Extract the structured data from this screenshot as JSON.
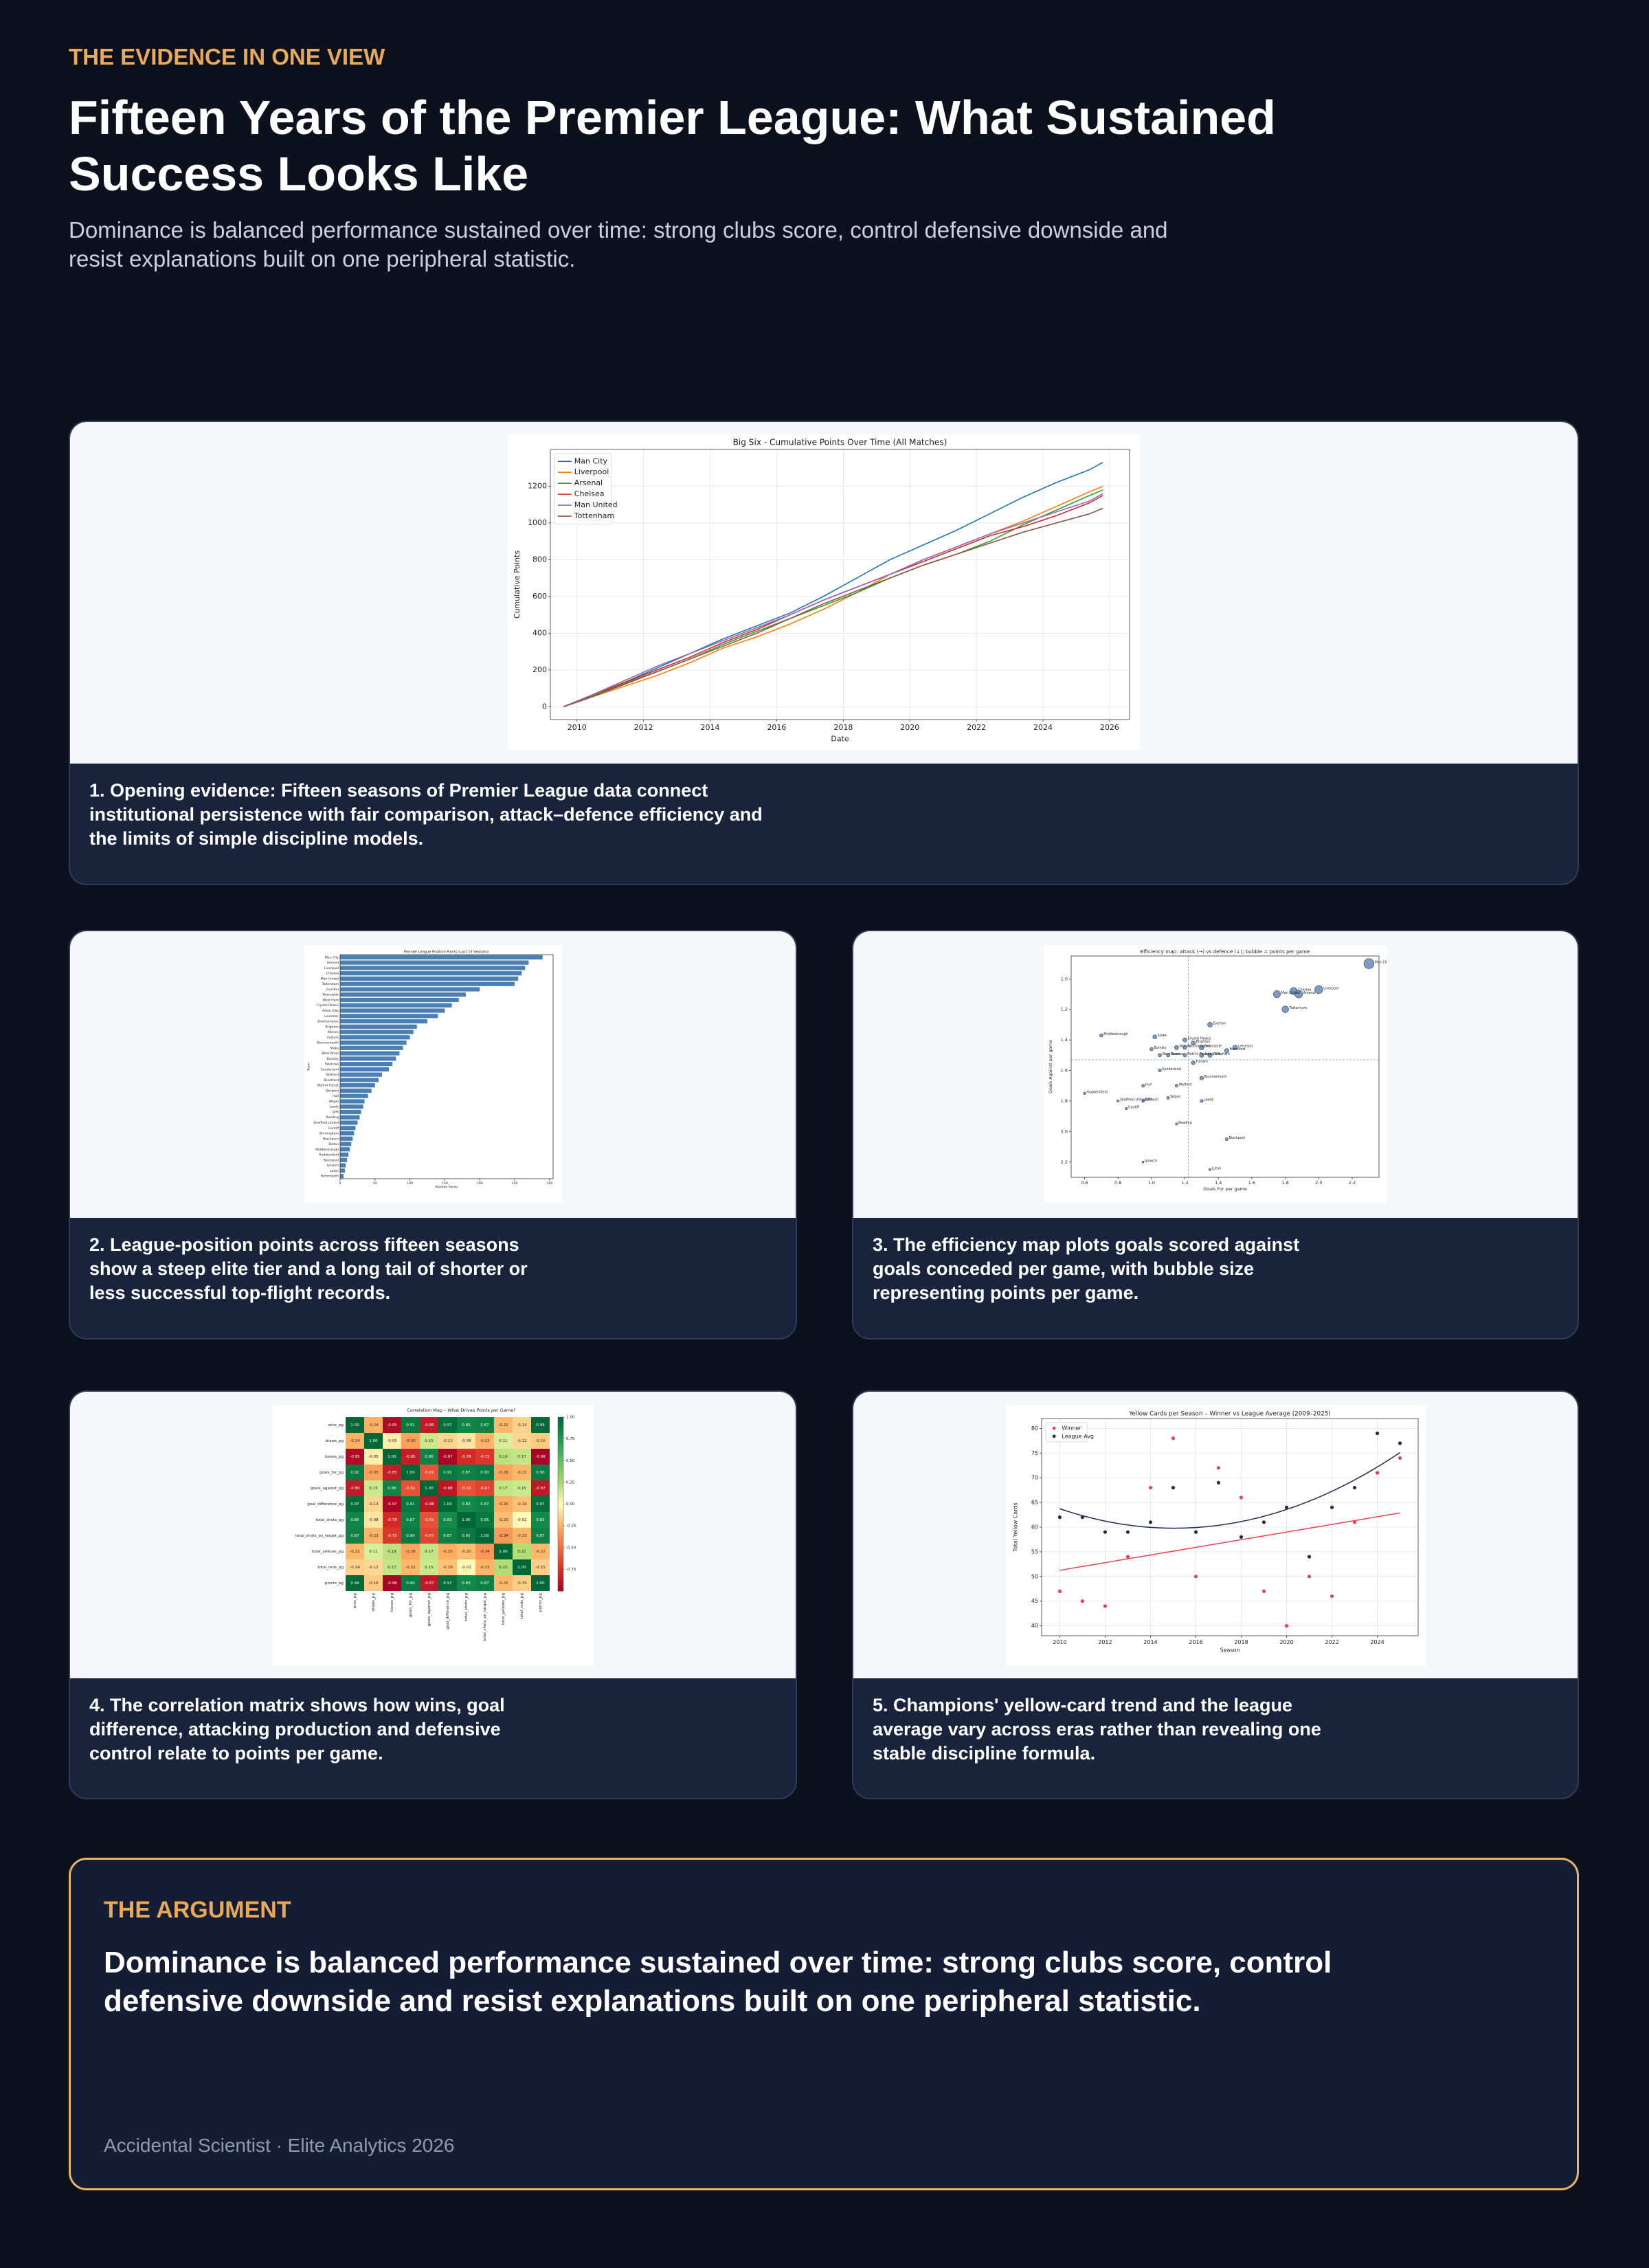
{
  "header": {
    "eyebrow": "THE EVIDENCE IN ONE VIEW",
    "title": "Fifteen Years of the Premier League: What Sustained Success Looks Like",
    "subtitle": "Dominance is balanced performance sustained over time: strong clubs score, control defensive downside and resist explanations built on one peripheral statistic."
  },
  "captions": [
    "1. Opening evidence: Fifteen seasons of Premier League data connect institutional persistence with fair comparison, attack–defence efficiency and the limits of simple discipline models.",
    "2. League-position points across fifteen seasons show a steep elite tier and a long tail of shorter or less successful top-flight records.",
    "3. The efficiency map plots goals scored against goals conceded per game, with bubble size representing points per game.",
    "4. The correlation matrix shows how wins, goal difference, attacking production and defensive control relate to points per game.",
    "5. Champions' yellow-card trend and the league average vary across eras rather than revealing one stable discipline formula."
  ],
  "argument": {
    "label": "THE ARGUMENT",
    "text": "Dominance is balanced performance sustained over time: strong clubs score, control defensive downside and resist explanations built on one peripheral statistic.",
    "footer": "Accidental Scientist · Elite Analytics 2026"
  },
  "chart_data": [
    {
      "type": "line",
      "title": "Big Six - Cumulative Points Over Time (All Matches)",
      "xlabel": "Date",
      "ylabel": "Cumulative Points",
      "x": [
        2009.6,
        2010.4,
        2011.4,
        2012.4,
        2013.4,
        2014.4,
        2015.4,
        2016.4,
        2017.4,
        2018.4,
        2019.4,
        2020.4,
        2021.4,
        2022.4,
        2023.4,
        2024.4,
        2025.4,
        2025.8
      ],
      "series": [
        {
          "name": "Man City",
          "color": "#1f77b4",
          "values": [
            0,
            60,
            130,
            210,
            290,
            370,
            440,
            510,
            600,
            700,
            800,
            880,
            960,
            1050,
            1140,
            1220,
            1290,
            1330
          ]
        },
        {
          "name": "Liverpool",
          "color": "#ff7f0e",
          "values": [
            0,
            50,
            110,
            170,
            240,
            320,
            380,
            450,
            530,
            620,
            720,
            800,
            870,
            940,
            1010,
            1090,
            1170,
            1200
          ]
        },
        {
          "name": "Arsenal",
          "color": "#2ca02c",
          "values": [
            0,
            55,
            125,
            190,
            260,
            340,
            410,
            480,
            550,
            620,
            700,
            770,
            830,
            900,
            990,
            1070,
            1150,
            1180
          ]
        },
        {
          "name": "Chelsea",
          "color": "#d62728",
          "values": [
            0,
            60,
            130,
            200,
            270,
            350,
            420,
            500,
            580,
            650,
            720,
            790,
            860,
            930,
            980,
            1040,
            1110,
            1150
          ]
        },
        {
          "name": "Man United",
          "color": "#9467bd",
          "values": [
            0,
            60,
            140,
            220,
            290,
            360,
            430,
            500,
            580,
            650,
            720,
            800,
            870,
            940,
            1000,
            1060,
            1120,
            1160
          ]
        },
        {
          "name": "Tottenham",
          "color": "#8c564b",
          "values": [
            0,
            50,
            120,
            190,
            260,
            330,
            400,
            480,
            560,
            630,
            700,
            770,
            830,
            890,
            950,
            1000,
            1050,
            1080
          ]
        }
      ],
      "xlim": [
        2009.2,
        2026.6
      ],
      "xticks": [
        2010,
        2012,
        2014,
        2016,
        2018,
        2020,
        2022,
        2024,
        2026
      ],
      "ylim": [
        -70,
        1400
      ],
      "yticks": [
        0,
        200,
        400,
        600,
        800,
        1000,
        1200
      ],
      "grid": true,
      "legend": "upper-left"
    },
    {
      "type": "hbar",
      "title": "Premier League Position Points (Last 15 Seasons)",
      "xlabel": "Position Points",
      "ylabel": "Team",
      "color": "#4a7fb5",
      "categories": [
        "Man City",
        "Arsenal",
        "Liverpool",
        "Chelsea",
        "Man United",
        "Tottenham",
        "Everton",
        "Newcastle",
        "West Ham",
        "Crystal Palace",
        "Aston Villa",
        "Leicester",
        "Southampton",
        "Brighton",
        "Wolves",
        "Fulham",
        "Bournemouth",
        "Stoke",
        "West Brom",
        "Burnley",
        "Swansea",
        "Sunderland",
        "Watford",
        "Brentford",
        "Nott'm Forest",
        "Norwich",
        "Hull",
        "Wigan",
        "Leeds",
        "QPR",
        "Reading",
        "Sheffield United",
        "Cardiff",
        "Birmingham",
        "Blackburn",
        "Bolton",
        "Middlesbrough",
        "Huddersfield",
        "Blackpool",
        "Ipswich",
        "Luton",
        "Portsmouth"
      ],
      "values": [
        290,
        270,
        265,
        260,
        255,
        250,
        200,
        180,
        170,
        160,
        150,
        140,
        125,
        110,
        105,
        100,
        95,
        90,
        85,
        80,
        75,
        70,
        60,
        55,
        50,
        45,
        40,
        35,
        33,
        30,
        28,
        25,
        22,
        20,
        18,
        16,
        14,
        12,
        10,
        8,
        7,
        5
      ],
      "xlim": [
        0,
        305
      ],
      "xticks": [
        0,
        50,
        100,
        150,
        200,
        250,
        300
      ]
    },
    {
      "type": "bubble",
      "title": "Efficiency map: attack (→) vs defence (↓); bubble = points per game",
      "xlabel": "Goals For per game",
      "ylabel": "Goals Against per game",
      "color": "#5b84b1",
      "categories": [
        "Man City",
        "Liverpool",
        "Chelsea",
        "Arsenal",
        "Man United",
        "Tottenham",
        "Everton",
        "Newcastle",
        "West Ham",
        "Crystal Palace",
        "Aston Villa",
        "Leicester",
        "Southampton",
        "Brighton",
        "Wolves",
        "Brentford",
        "Fulham",
        "Bournemouth",
        "Middlesbrough",
        "Stoke",
        "Burnley",
        "West Brom",
        "Swansea",
        "Nott'm Forest",
        "Sunderland",
        "Hull",
        "Watford",
        "Norwich",
        "Huddersfield",
        "Sheffield United",
        "QPR",
        "Wigan",
        "Cardiff",
        "Leeds",
        "Reading",
        "Blackpool",
        "Ipswich",
        "Luton"
      ],
      "x": [
        2.3,
        2.0,
        1.85,
        1.88,
        1.75,
        1.8,
        1.35,
        1.3,
        1.35,
        1.2,
        1.3,
        1.5,
        1.2,
        1.25,
        1.15,
        1.45,
        1.25,
        1.3,
        0.7,
        1.02,
        1.0,
        1.05,
        1.1,
        1.2,
        1.05,
        0.95,
        1.15,
        0.95,
        0.6,
        0.8,
        0.95,
        1.1,
        0.85,
        1.3,
        1.15,
        1.45,
        0.95,
        1.35
      ],
      "values": [
        0.9,
        1.07,
        1.08,
        1.1,
        1.1,
        1.2,
        1.3,
        1.45,
        1.5,
        1.4,
        1.5,
        1.45,
        1.45,
        1.42,
        1.45,
        1.47,
        1.55,
        1.65,
        1.37,
        1.38,
        1.46,
        1.5,
        1.5,
        1.5,
        1.6,
        1.7,
        1.7,
        1.8,
        1.75,
        1.8,
        1.8,
        1.78,
        1.85,
        1.8,
        1.95,
        2.05,
        2.2,
        2.25
      ],
      "sizes": [
        2.3,
        2.0,
        1.9,
        1.95,
        1.85,
        1.8,
        1.45,
        1.4,
        1.35,
        1.3,
        1.35,
        1.4,
        1.2,
        1.3,
        1.3,
        1.35,
        1.2,
        1.2,
        1.1,
        1.25,
        1.1,
        1.1,
        1.15,
        1.15,
        1.0,
        0.95,
        1.0,
        0.9,
        0.8,
        0.8,
        0.85,
        0.95,
        0.8,
        1.0,
        0.8,
        1.0,
        0.6,
        0.7
      ],
      "ref_lines": {
        "x": 1.22,
        "y": 1.53
      },
      "xlim": [
        0.52,
        2.36
      ],
      "xticks": [
        0.6,
        0.8,
        {
          "value": 1,
          "label": "1.0"
        },
        1.2,
        1.4,
        1.6,
        1.8,
        {
          "value": 2,
          "label": "2.0"
        },
        2.2
      ],
      "ylim": [
        2.3,
        0.85
      ],
      "yticks": [
        {
          "value": 1,
          "label": "1.0"
        },
        1.2,
        1.4,
        1.6,
        1.8,
        {
          "value": 2,
          "label": "2.0"
        },
        2.2
      ]
    },
    {
      "type": "heatmap",
      "title": "Correlation Map – What Drives Points per Game?",
      "categories": [
        "wins_pg",
        "draws_pg",
        "losses_pg",
        "goals_for_pg",
        "goals_against_pg",
        "goal_difference_pg",
        "total_shots_pg",
        "total_shots_on_target_pg",
        "total_yellows_pg",
        "total_reds_pg",
        "points_pg"
      ],
      "values": [
        [
          1,
          -0.24,
          -0.95,
          0.91,
          -0.86,
          0.97,
          0.85,
          0.87,
          -0.22,
          -0.14,
          0.99
        ],
        [
          -0.24,
          1,
          -0.05,
          -0.3,
          0.15,
          -0.13,
          -0.08,
          -0.23,
          0.11,
          -0.12,
          -0.16
        ],
        [
          -0.95,
          -0.05,
          1,
          -0.85,
          0.86,
          -0.97,
          -0.78,
          -0.72,
          0.19,
          0.17,
          -0.98
        ],
        [
          0.91,
          -0.3,
          -0.85,
          1,
          -0.61,
          0.91,
          0.87,
          0.9,
          -0.28,
          -0.22,
          0.9
        ],
        [
          -0.86,
          0.15,
          0.86,
          -0.61,
          1,
          -0.88,
          -0.62,
          -0.67,
          0.17,
          0.15,
          -0.87
        ],
        [
          0.97,
          -0.13,
          -0.97,
          0.91,
          -0.88,
          1,
          0.83,
          0.87,
          -0.25,
          -0.19,
          0.97
        ],
        [
          0.85,
          -0.08,
          -0.78,
          0.87,
          -0.62,
          0.83,
          1,
          0.91,
          -0.2,
          -0.02,
          0.83
        ],
        [
          0.87,
          -0.23,
          -0.72,
          0.9,
          -0.67,
          0.87,
          0.91,
          1,
          -0.34,
          -0.23,
          0.87
        ],
        [
          -0.22,
          0.11,
          0.19,
          -0.28,
          0.17,
          -0.25,
          -0.2,
          -0.34,
          1,
          0.22,
          -0.22
        ],
        [
          -0.14,
          -0.12,
          0.17,
          -0.22,
          0.15,
          -0.19,
          -0.02,
          -0.23,
          0.22,
          1,
          -0.15
        ],
        [
          0.99,
          -0.16,
          -0.98,
          0.9,
          -0.87,
          0.97,
          0.83,
          0.87,
          -0.22,
          -0.15,
          1
        ]
      ],
      "value_labels": [
        [
          "1.00",
          "-0.24",
          "-0.95",
          "0.91",
          "-0.86",
          "0.97",
          "0.85",
          "0.87",
          "-0.22",
          "-0.14",
          "0.99"
        ],
        [
          "-0.24",
          "1.00",
          "-0.05",
          "-0.30",
          "0.15",
          "-0.13",
          "-0.08",
          "-0.23",
          "0.11",
          "-0.12",
          "-0.16"
        ],
        [
          "-0.95",
          "-0.05",
          "1.00",
          "-0.85",
          "0.86",
          "-0.97",
          "-0.78",
          "-0.72",
          "0.19",
          "0.17",
          "-0.98"
        ],
        [
          "0.91",
          "-0.30",
          "-0.85",
          "1.00",
          "-0.61",
          "0.91",
          "0.87",
          "0.90",
          "-0.28",
          "-0.22",
          "0.90"
        ],
        [
          "-0.86",
          "0.15",
          "0.86",
          "-0.61",
          "1.00",
          "-0.88",
          "-0.62",
          "-0.67",
          "0.17",
          "0.15",
          "-0.87"
        ],
        [
          "0.97",
          "-0.13",
          "-0.97",
          "0.91",
          "-0.88",
          "1.00",
          "0.83",
          "0.87",
          "-0.25",
          "-0.19",
          "0.97"
        ],
        [
          "0.85",
          "-0.08",
          "-0.78",
          "0.87",
          "-0.62",
          "0.83",
          "1.00",
          "0.91",
          "-0.20",
          "-0.02",
          "0.83"
        ],
        [
          "0.87",
          "-0.23",
          "-0.72",
          "0.90",
          "-0.67",
          "0.87",
          "0.91",
          "1.00",
          "-0.34",
          "-0.23",
          "0.87"
        ],
        [
          "-0.22",
          "0.11",
          "0.19",
          "-0.28",
          "0.17",
          "-0.25",
          "-0.20",
          "-0.34",
          "1.00",
          "0.22",
          "-0.22"
        ],
        [
          "-0.14",
          "-0.12",
          "0.17",
          "-0.22",
          "0.15",
          "-0.19",
          "-0.02",
          "-0.23",
          "0.22",
          "1.00",
          "-0.15"
        ],
        [
          "0.99",
          "-0.16",
          "-0.98",
          "0.90",
          "-0.87",
          "0.97",
          "0.83",
          "0.87",
          "-0.22",
          "-0.15",
          "1.00"
        ]
      ],
      "clim": [
        -1,
        1
      ],
      "cbar_ticks": [
        {
          "value": 1,
          "label": "1.00"
        },
        0.75,
        {
          "value": 0.5,
          "label": "0.50"
        },
        0.25,
        {
          "value": 0,
          "label": "0.00"
        },
        -0.25,
        {
          "value": -0.5,
          "label": "-0.50"
        },
        -0.75
      ]
    },
    {
      "type": "scatter",
      "title": "Yellow Cards per Season – Winner vs League Average (2009–2025)",
      "xlabel": "Season",
      "ylabel": "Total Yellow Cards",
      "x": [
        2010,
        2011,
        2012,
        2013,
        2014,
        2015,
        2016,
        2017,
        2018,
        2019,
        2020,
        2021,
        2022,
        2023,
        2024,
        2025
      ],
      "series": [
        {
          "name": "Winner",
          "color": "#e8414f",
          "trend": "linear",
          "values": [
            47,
            45,
            44,
            54,
            68,
            78,
            50,
            72,
            66,
            47,
            40,
            50,
            46,
            61,
            71,
            74
          ]
        },
        {
          "name": "League Avg",
          "color": "#1f2d4e",
          "trend": "quadratic",
          "values": [
            62,
            62,
            59,
            59,
            61,
            68,
            59,
            69,
            58,
            61,
            64,
            54,
            64,
            68,
            79,
            77
          ]
        }
      ],
      "xlim": [
        2009.2,
        2025.8
      ],
      "xticks": [
        2010,
        2012,
        2014,
        2016,
        2018,
        2020,
        2022,
        2024
      ],
      "ylim": [
        38,
        82
      ],
      "yticks": [
        40,
        45,
        50,
        55,
        60,
        65,
        70,
        75,
        80
      ],
      "grid": true,
      "legend": "upper-left"
    }
  ]
}
